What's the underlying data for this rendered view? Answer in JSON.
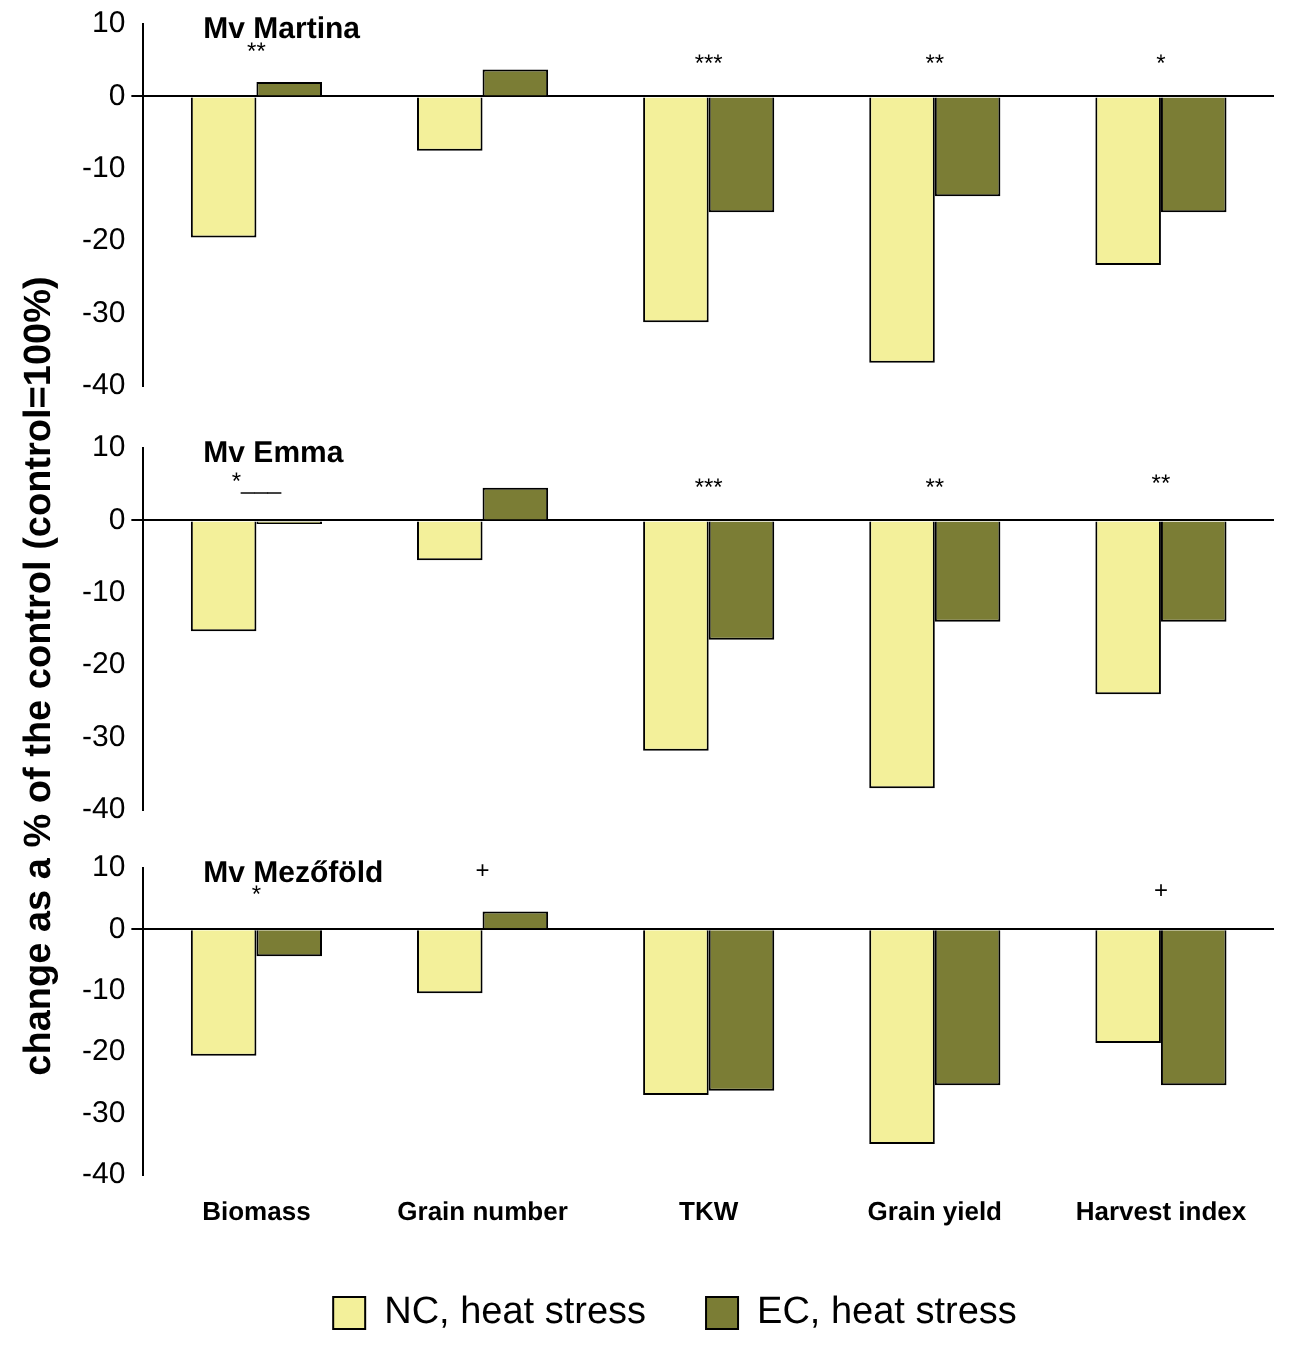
{
  "chart_data": [
    {
      "type": "bar",
      "title": "Mv Martina",
      "categories": [
        null,
        null,
        null,
        null,
        null
      ],
      "series": [
        {
          "color": "#f3f09a",
          "values": [
            -19.5,
            -7.5,
            -31.2,
            -36.8,
            -23.3
          ]
        },
        {
          "color": "#7b7d35",
          "values": [
            2,
            3.7,
            -16,
            -13.8,
            -16
          ]
        }
      ],
      "ylim": [
        -40,
        10
      ],
      "yticks": [
        -40,
        -30,
        -20,
        -10,
        0,
        10
      ],
      "tick_labels": "y",
      "annotations": [
        "**",
        "***",
        "**",
        "*"
      ]
    },
    {
      "type": "bar",
      "title": "Mv Emma",
      "ylabel": "change as a % of the control (control=100%)",
      "categories": [
        null,
        null,
        null,
        null,
        null
      ],
      "series": [
        {
          "color": "#f3f09a",
          "values": [
            -15.3,
            -5.5,
            -31.8,
            -37,
            -24
          ]
        },
        {
          "color": "#7b7d35",
          "values": [
            -0.5,
            4.5,
            -16.5,
            -14,
            -14
          ]
        }
      ],
      "ylim": [
        -40,
        10
      ],
      "yticks": [
        -40,
        -30,
        -20,
        -10,
        0,
        10
      ],
      "tick_labels": "y",
      "annotations": [
        "*___",
        "***",
        "**",
        "**"
      ]
    },
    {
      "type": "bar",
      "title": "Mv Mezőföld",
      "categories": [
        "Biomass",
        "Grain number",
        "TKW",
        "Grain yield",
        "Harvest index"
      ],
      "series": [
        {
          "name": "NC, heat stress",
          "color": "#f3f09a",
          "values": [
            -20.6,
            -10.4,
            -27,
            -35,
            -18.5
          ]
        },
        {
          "name": "EC, heat stress",
          "color": "#7b7d35",
          "values": [
            -4.4,
            2.9,
            -26.3,
            -25.4,
            -25.4
          ]
        }
      ],
      "ylim": [
        -40,
        10
      ],
      "yticks": [
        -40,
        -30,
        -20,
        -10,
        0,
        10
      ],
      "legend": "bottom",
      "annotations": [
        "*",
        "+",
        "+"
      ]
    }
  ]
}
